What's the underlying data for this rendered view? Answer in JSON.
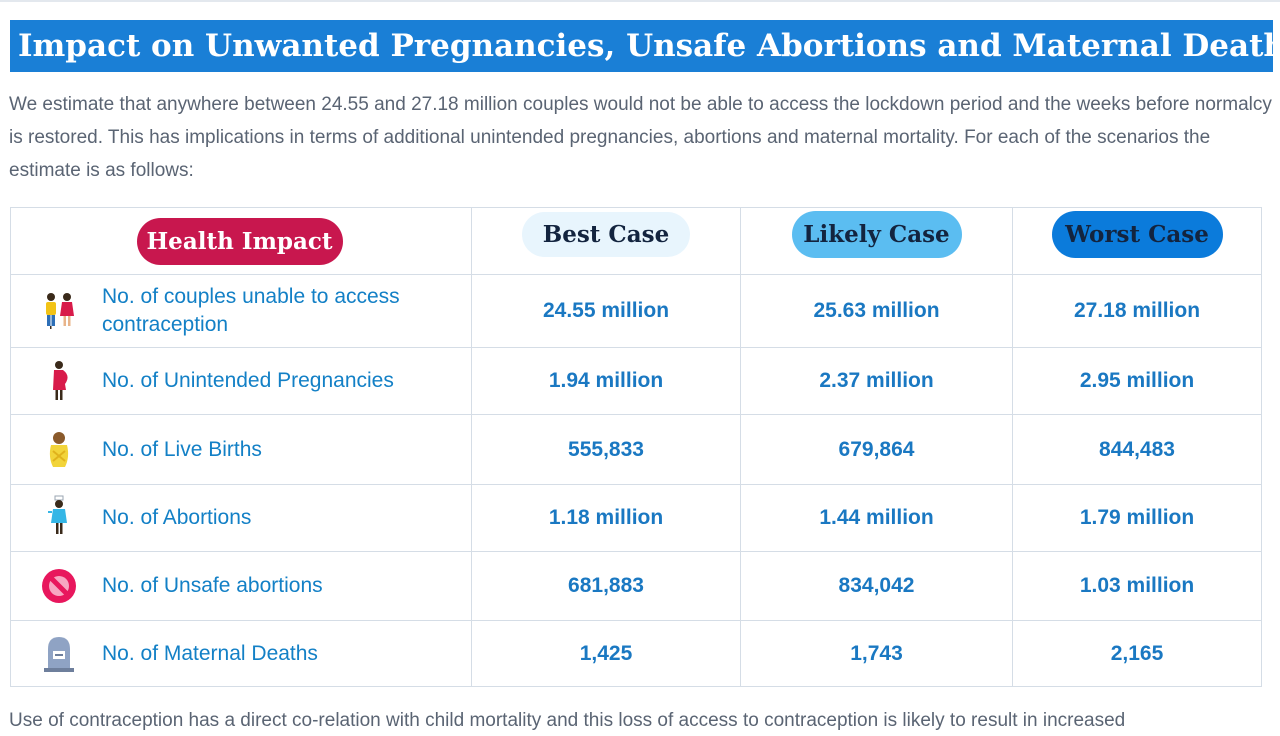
{
  "title": "Impact on Unwanted Pregnancies, Unsafe Abortions and Maternal Deaths",
  "intro": "We estimate that anywhere between 24.55 and 27.18 million couples would not be able to access the lockdown period and the weeks before normalcy is restored. This has implications in terms of additional unintended pregnancies, abortions and maternal mortality. For each of the scenarios the estimate is as follows:",
  "table": {
    "headers": [
      "Health Impact",
      "Best Case",
      "Likely Case",
      "Worst Case"
    ],
    "rows": [
      {
        "icon": "couple-icon",
        "label": "No. of couples  unable to access contraception",
        "values": [
          "24.55 million",
          "25.63 million",
          "27.18 million"
        ]
      },
      {
        "icon": "pregnant-woman-icon",
        "label": "No. of Unintended Pregnancies",
        "values": [
          "1.94 million",
          "2.37 million",
          "2.95 million"
        ]
      },
      {
        "icon": "baby-icon",
        "label": "No. of Live Births",
        "values": [
          "555,833",
          "679,864",
          "844,483"
        ]
      },
      {
        "icon": "nurse-icon",
        "label": "No. of  Abortions",
        "values": [
          "1.18 million",
          "1.44 million",
          "1.79 million"
        ]
      },
      {
        "icon": "prohibited-icon",
        "label": "No. of Unsafe abortions",
        "values": [
          "681,883",
          "834,042",
          "1.03 million"
        ]
      },
      {
        "icon": "gravestone-icon",
        "label": "No. of Maternal Deaths",
        "values": [
          "1,425",
          "1,743",
          "2,165"
        ]
      }
    ]
  },
  "bottom_text": "Use of contraception has a direct co-relation with child mortality and this loss of access to contraception is likely to result in increased"
}
